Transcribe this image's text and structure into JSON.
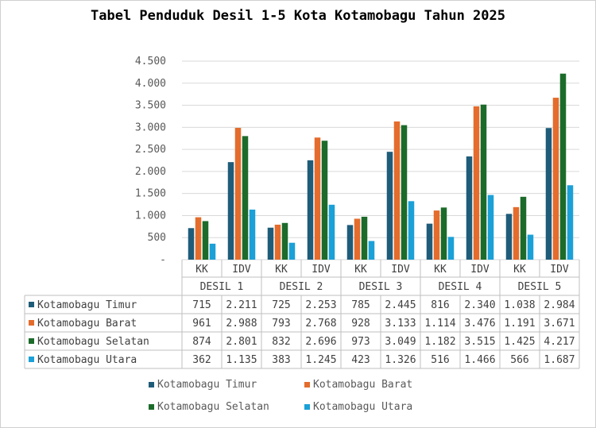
{
  "chart_data": {
    "type": "bar",
    "title": "Tabel Penduduk Desil 1-5 Kota Kotamobagu Tahun 2025",
    "groups": [
      "DESIL 1",
      "DESIL 2",
      "DESIL 3",
      "DESIL 4",
      "DESIL 5"
    ],
    "subcategories": [
      "KK",
      "IDV"
    ],
    "yticks": [
      "-",
      "500",
      "1.000",
      "1.500",
      "2.000",
      "2.500",
      "3.000",
      "3.500",
      "4.000",
      "4.500"
    ],
    "ylim": [
      0,
      4500
    ],
    "grid": true,
    "legend_position": "bottom",
    "series": [
      {
        "name": "Kotamobagu Timur",
        "color": "#1f5c7a",
        "values": [
          715,
          2211,
          725,
          2253,
          785,
          2445,
          816,
          2340,
          1038,
          2984
        ],
        "labels": [
          "715",
          "2.211",
          "725",
          "2.253",
          "785",
          "2.445",
          "816",
          "2.340",
          "1.038",
          "2.984"
        ]
      },
      {
        "name": "Kotamobagu Barat",
        "color": "#e46c2c",
        "values": [
          961,
          2988,
          793,
          2768,
          928,
          3133,
          1114,
          3476,
          1191,
          3671
        ],
        "labels": [
          "961",
          "2.988",
          "793",
          "2.768",
          "928",
          "3.133",
          "1.114",
          "3.476",
          "1.191",
          "3.671"
        ]
      },
      {
        "name": "Kotamobagu Selatan",
        "color": "#1c6b2a",
        "values": [
          874,
          2801,
          832,
          2696,
          973,
          3049,
          1182,
          3515,
          1425,
          4217
        ],
        "labels": [
          "874",
          "2.801",
          "832",
          "2.696",
          "973",
          "3.049",
          "1.182",
          "3.515",
          "1.425",
          "4.217"
        ]
      },
      {
        "name": "Kotamobagu Utara",
        "color": "#1ba0d8",
        "values": [
          362,
          1135,
          383,
          1245,
          423,
          1326,
          516,
          1466,
          566,
          1687
        ],
        "labels": [
          "362",
          "1.135",
          "383",
          "1.245",
          "423",
          "1.326",
          "516",
          "1.466",
          "566",
          "1.687"
        ]
      }
    ]
  }
}
